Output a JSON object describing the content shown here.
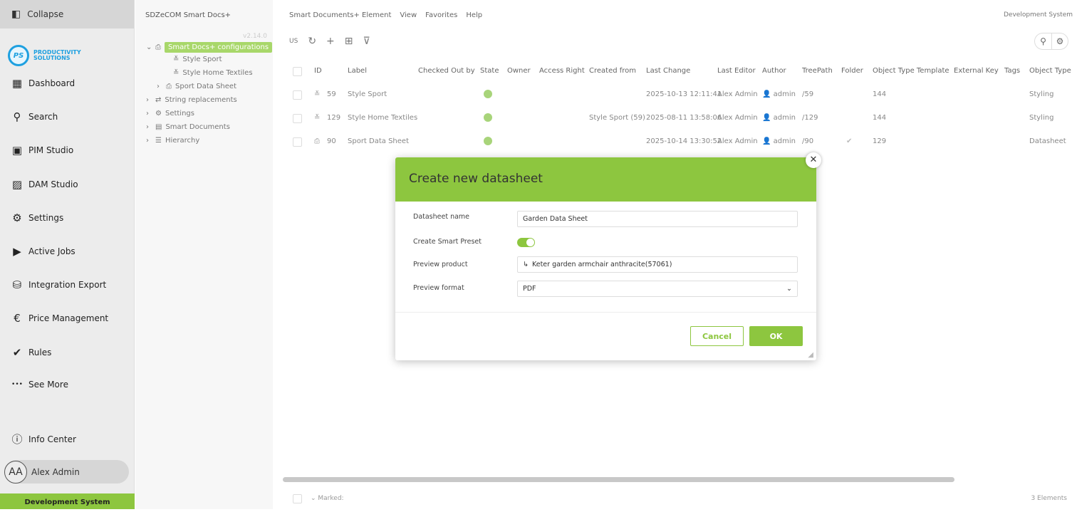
{
  "sidebar": {
    "collapse": "Collapse",
    "logo_text": "PRODUCTIVITY SOLUTIONS",
    "logo_initials": "PS",
    "items": [
      {
        "label": "Dashboard",
        "icon": "dashboard-icon",
        "glyph": "▦"
      },
      {
        "label": "Search",
        "icon": "search-icon",
        "glyph": "⚲"
      },
      {
        "label": "PIM Studio",
        "icon": "pim-icon",
        "glyph": "▣"
      },
      {
        "label": "DAM Studio",
        "icon": "image-icon",
        "glyph": "▨"
      },
      {
        "label": "Settings",
        "icon": "gear-icon",
        "glyph": "⚙"
      },
      {
        "label": "Active Jobs",
        "icon": "play-icon",
        "glyph": "▶"
      },
      {
        "label": "Integration Export",
        "icon": "database-export-icon",
        "glyph": "⛁"
      },
      {
        "label": "Price Management",
        "icon": "euro-icon",
        "glyph": "€"
      },
      {
        "label": "Rules",
        "icon": "check-circle-icon",
        "glyph": "✔"
      },
      {
        "label": "See More",
        "icon": "more-icon",
        "glyph": "•••"
      }
    ],
    "info_center": "Info Center",
    "user_initials": "AA",
    "user_name": "Alex Admin",
    "environment": "Development System"
  },
  "tree": {
    "title": "SDZeCOM Smart Docs+",
    "version": "v2.14.0",
    "items": [
      {
        "label": "Smart Docs+ configurations",
        "glyph": "⌄",
        "icon": "pdf-icon",
        "ig": "⎙",
        "selected": true
      },
      {
        "label": "Style Sport",
        "glyph": "",
        "icon": "styling-icon",
        "ig": "≚"
      },
      {
        "label": "Style Home Textiles",
        "glyph": "",
        "icon": "styling-icon",
        "ig": "≚"
      },
      {
        "label": "Sport Data Sheet",
        "glyph": "›",
        "icon": "pdf-icon",
        "ig": "⎙"
      },
      {
        "label": "String replacements",
        "glyph": "›",
        "icon": "swap-icon",
        "ig": "⇄"
      },
      {
        "label": "Settings",
        "glyph": "›",
        "icon": "gear-icon",
        "ig": "⚙"
      },
      {
        "label": "Smart Documents",
        "glyph": "›",
        "icon": "document-icon",
        "ig": "▤"
      },
      {
        "label": "Hierarchy",
        "glyph": "›",
        "icon": "hierarchy-icon",
        "ig": "☰"
      }
    ]
  },
  "menu": [
    "Smart Documents+ Element",
    "View",
    "Favorites",
    "Help"
  ],
  "environment_label": "Development System",
  "toolbar": {
    "locale": "US"
  },
  "table": {
    "columns": [
      "ID",
      "Label",
      "Checked Out by",
      "State",
      "Owner",
      "Access Right",
      "Created from",
      "Last Change",
      "Last Editor",
      "Author",
      "TreePath",
      "Folder",
      "Object Type Template",
      "External Key",
      "Tags",
      "Object Type"
    ],
    "rows": [
      {
        "id": "59",
        "label": "Style Sport",
        "checked_out_by": "",
        "state": "active",
        "owner": "",
        "access_right": "",
        "created_from": "",
        "last_change": "2025-10-13 12:11:41",
        "last_editor": "Alex Admin",
        "author": "admin",
        "treepath": "/59",
        "folder": false,
        "object_type_template": "144",
        "external_key": "",
        "tags": "",
        "object_type": "Styling",
        "icon": "styling-icon"
      },
      {
        "id": "129",
        "label": "Style Home Textiles",
        "checked_out_by": "",
        "state": "active",
        "owner": "",
        "access_right": "",
        "created_from": "Style Sport (59)",
        "last_change": "2025-08-11 13:58:06",
        "last_editor": "Alex Admin",
        "author": "admin",
        "treepath": "/129",
        "folder": false,
        "object_type_template": "144",
        "external_key": "",
        "tags": "",
        "object_type": "Styling",
        "icon": "styling-icon"
      },
      {
        "id": "90",
        "label": "Sport Data Sheet",
        "checked_out_by": "",
        "state": "active",
        "owner": "",
        "access_right": "",
        "created_from": "",
        "last_change": "2025-10-14 13:30:52",
        "last_editor": "Alex Admin",
        "author": "admin",
        "treepath": "/90",
        "folder": true,
        "object_type_template": "129",
        "external_key": "",
        "tags": "",
        "object_type": "Datasheet",
        "icon": "pdf-icon"
      }
    ]
  },
  "footer": {
    "marked": "Marked:",
    "count": "3 Elements"
  },
  "dialog": {
    "title": "Create new datasheet",
    "name_label": "Datasheet name",
    "name_value": "Garden Data Sheet",
    "preset_label": "Create Smart Preset",
    "preset_on": true,
    "product_label": "Preview product",
    "product_value": "Keter garden armchair anthracite(57061)",
    "format_label": "Preview format",
    "format_value": "PDF",
    "cancel": "Cancel",
    "ok": "OK"
  },
  "colors": {
    "accent": "#8dc63f",
    "state_active": "#a8d47a",
    "logo": "#1ea0e0"
  }
}
